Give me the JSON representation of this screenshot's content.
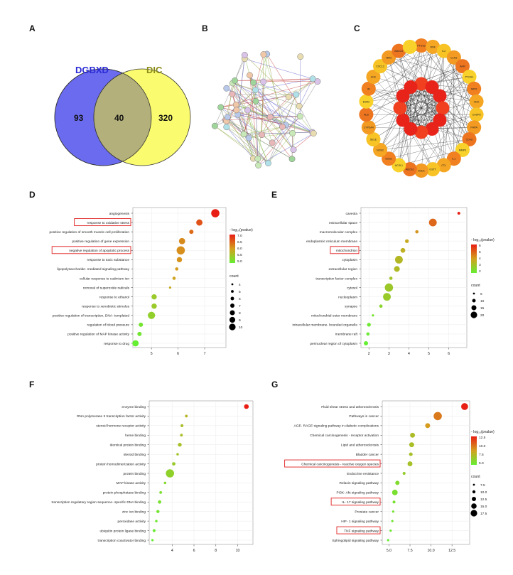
{
  "panel_letters": {
    "A": "A",
    "B": "B",
    "C": "C",
    "D": "D",
    "E": "E",
    "F": "F",
    "G": "G"
  },
  "colors": {
    "venn_left": "#6b6bef",
    "venn_right": "#fbfb70",
    "venn_overlap": "#b3b07c",
    "venn_left_label": "#2b2bd6",
    "venn_right_label": "#8b8b1a",
    "highlight_box": "#e02020"
  },
  "venn": {
    "left_label": "DGBXD",
    "right_label": "DIC",
    "left_only": "93",
    "overlap": "40",
    "right_only": "320"
  },
  "hub_genes": {
    "inner": [
      "",
      "",
      "",
      "",
      "",
      "",
      "",
      "",
      "",
      "",
      "",
      ""
    ],
    "outer_visible": [
      "PTGS2",
      "RNF",
      "IL2",
      "CLN1",
      "AHR",
      "PTGS1",
      "MPO",
      "XDH",
      "CASP8",
      "PHPA",
      "CDH2",
      "MMP3",
      "IL1",
      "CTL",
      "GSTT",
      "SOD1",
      "ABCB1",
      "ACSL1",
      "SOD1",
      "NOS2",
      "SELE",
      "CYP3A4",
      "ALB",
      "ESR2",
      "IFI",
      "ACE",
      "CXCL2",
      "HMO",
      "ABCG2",
      ""
    ]
  },
  "chart_data": [
    {
      "panel": "D",
      "type": "scatter",
      "categories": [
        "angiogenesis",
        "response to oxidative stress",
        "positive regulation of smooth muscle cell proliferation",
        "positive regulation of gene expression",
        "negative regulation of apoptotic process",
        "response to toxic substance",
        "lipopolysaccharide- mediated signaling pathway",
        "cellular response to cadmium ion",
        "removal of superoxide radicals",
        "response to ethanol",
        "response to xenobiotic stimulus",
        "positive regulation of transcription, DNA- templated",
        "regulation of blood pressure",
        "positive regulation of MAP kinase activity",
        "response to drug"
      ],
      "x": [
        7.4,
        6.8,
        6.5,
        6.15,
        6.1,
        6.05,
        5.95,
        5.85,
        5.7,
        5.1,
        5.1,
        5.0,
        4.6,
        4.55,
        4.4
      ],
      "count": [
        10,
        8,
        6,
        8,
        10,
        7,
        5,
        5,
        4,
        7,
        7,
        9,
        6,
        6,
        8
      ],
      "color_value": [
        7.4,
        6.8,
        6.5,
        6.15,
        6.1,
        6.05,
        5.95,
        5.85,
        5.7,
        5.1,
        5.1,
        5.0,
        4.6,
        4.55,
        4.4
      ],
      "highlighted": [
        "response to oxidative stress",
        "negative regulation of apoptotic process"
      ],
      "xlim": [
        4.3,
        7.8
      ],
      "xticks": [
        5,
        6,
        7
      ],
      "color_legend": {
        "title": "- log₁₀(pvalue)",
        "ticks": [
          "7.0",
          "6.5",
          "6.0",
          "5.5",
          "5.0"
        ],
        "range": [
          4.4,
          7.4
        ]
      },
      "size_legend": {
        "title": "count",
        "ticks": [
          "4",
          "5",
          "6",
          "7",
          "8",
          "9",
          "10"
        ]
      }
    },
    {
      "panel": "E",
      "type": "scatter",
      "categories": [
        "caveola",
        "extracellular space",
        "macromolecular complex",
        "endoplasmic reticulum membrane",
        "mitochondrion",
        "cytoplasm",
        "extracellular region",
        "transcription factor complex",
        "cytosol",
        "nucleoplasm",
        "synapse",
        "mitochondrial outer membrane",
        "intracellular membrane- bounded organelle",
        "membrane raft",
        "perinuclear region of cytoplasm"
      ],
      "x": [
        6.5,
        5.2,
        4.4,
        3.9,
        3.7,
        3.5,
        3.4,
        3.1,
        3.0,
        2.9,
        2.6,
        2.2,
        2.0,
        1.95,
        1.85
      ],
      "count": [
        4,
        14,
        5,
        6,
        8,
        14,
        10,
        5,
        15,
        14,
        5,
        3,
        6,
        5,
        7
      ],
      "color_value": [
        6.5,
        5.2,
        4.4,
        3.9,
        3.7,
        3.5,
        3.4,
        3.1,
        3.0,
        2.9,
        2.6,
        2.2,
        2.0,
        1.95,
        1.85
      ],
      "highlighted": [
        "mitochondrion"
      ],
      "xlim": [
        1.6,
        6.9
      ],
      "xticks": [
        2,
        3,
        4,
        5,
        6
      ],
      "color_legend": {
        "title": "- log₁₀(pvalue)",
        "ticks": [
          "6",
          "5",
          "4",
          "3",
          "2"
        ],
        "range": [
          1.85,
          6.5
        ]
      },
      "size_legend": {
        "title": "count",
        "ticks": [
          "5",
          "10",
          "15",
          "20"
        ]
      }
    },
    {
      "panel": "F",
      "type": "scatter",
      "categories": [
        "enzyme binding",
        "RNA polymerase II transcription factor activity",
        "steroid hormone receptor activity",
        "heme binding",
        "identical protein binding",
        "steroid binding",
        "protein homodimerization activity",
        "protein binding",
        "MAP kinase activity",
        "protein phosphatase binding",
        "transcription regulatory region sequence- specific DNA binding",
        "zinc ion binding",
        "peroxidase activity",
        "ubiquitin protein ligase binding",
        "transcription coactivator binding"
      ],
      "x": [
        10.8,
        5.3,
        4.9,
        4.85,
        4.7,
        4.5,
        4.15,
        3.8,
        3.35,
        2.95,
        2.85,
        2.7,
        2.55,
        2.35,
        2.2
      ],
      "count": [
        14,
        5,
        6,
        5,
        10,
        4,
        8,
        30,
        4,
        5,
        8,
        7,
        4,
        6,
        3
      ],
      "color_value": [
        10.8,
        5.3,
        4.9,
        4.85,
        4.7,
        4.5,
        4.15,
        3.8,
        3.35,
        2.95,
        2.85,
        2.7,
        2.55,
        2.35,
        2.2
      ],
      "highlighted": [],
      "xlim": [
        1.9,
        11.4
      ],
      "xticks": [
        4,
        6,
        8,
        10
      ],
      "color_legend": {
        "title": "- log₁₀(p)",
        "ticks": [
          "10",
          "8",
          "6",
          "4"
        ],
        "range": [
          2.2,
          10.8
        ]
      },
      "size_legend": {
        "title": "count",
        "ticks": [
          "10",
          "20",
          "30"
        ]
      }
    },
    {
      "panel": "G",
      "type": "scatter",
      "categories": [
        "Fluid shear stress and atherosclerosis",
        "Pathways in cancer",
        "AGE- RAGE signaling pathway in diabetic complications",
        "Chemical carcinogenesis - receptor activation",
        "Lipid and atherosclerosis",
        "Bladder cancer",
        "Chemical carcinogenesis - reactive oxygen species",
        "Endocrine resistance",
        "Relaxin signaling pathway",
        "PI3K- Akt signaling pathway",
        "IL- 17 signaling pathway",
        "Prostate cancer",
        "HIF- 1 signaling pathway",
        "TNF signaling pathway",
        "Sphingolipid signaling pathway"
      ],
      "x": [
        14.0,
        10.8,
        9.6,
        7.8,
        7.7,
        7.6,
        7.5,
        6.8,
        6.0,
        5.7,
        5.6,
        5.5,
        5.4,
        5.2,
        4.9
      ],
      "count": [
        12,
        14,
        9,
        9,
        9,
        7,
        9,
        6,
        8,
        10,
        6,
        5,
        5,
        5,
        5
      ],
      "color_value": [
        14.0,
        10.8,
        9.6,
        7.8,
        7.7,
        7.6,
        7.5,
        6.8,
        6.0,
        5.7,
        5.6,
        5.5,
        5.4,
        5.2,
        4.9
      ],
      "highlighted": [
        "Chemical carcinogenesis - reactive oxygen species",
        "IL- 17 signaling pathway",
        "TNF signaling pathway"
      ],
      "xlim": [
        4.2,
        14.6
      ],
      "xticks": [
        "5.0",
        "7.5",
        "10.0",
        "12.5"
      ],
      "color_legend": {
        "title": "- log₁₀(pvalue)",
        "ticks": [
          "12.5",
          "10.0",
          "7.5",
          "5.0"
        ],
        "range": [
          4.9,
          14.0
        ]
      },
      "size_legend": {
        "title": "count",
        "ticks": [
          "7.5",
          "10.0",
          "12.5",
          "15.0",
          "17.5"
        ]
      }
    }
  ]
}
